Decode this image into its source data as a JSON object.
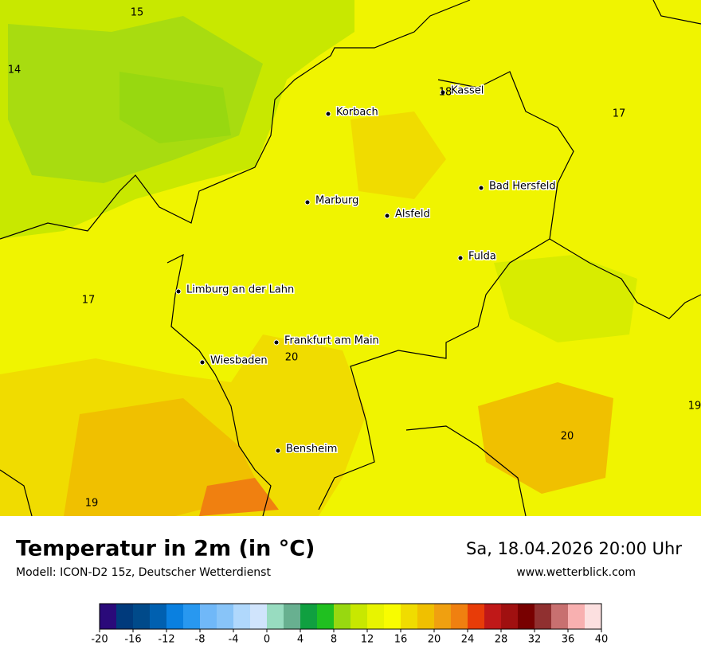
{
  "header": {
    "title": "Temperatur in 2m (in °C)",
    "subtitle": "Modell: ICON-D2 15z, Deutscher Wetterdienst",
    "datetime": "Sa, 18.04.2026 20:00 Uhr",
    "website": "www.wetterblick.com"
  },
  "map": {
    "cities": [
      "Kassel",
      "Korbach",
      "Marburg",
      "Alsfeld",
      "Bad Hersfeld",
      "Fulda",
      "Limburg an der Lahn",
      "Frankfurt am Main",
      "Wiesbaden",
      "Bensheim"
    ],
    "temperature_labels": [
      15,
      14,
      18,
      17,
      17,
      20,
      19,
      20,
      19
    ]
  },
  "legend": {
    "range": [
      -20,
      40
    ],
    "ticks": [
      -20,
      -16,
      -12,
      -8,
      -4,
      0,
      4,
      8,
      12,
      16,
      20,
      24,
      28,
      32,
      36,
      40
    ],
    "colors": [
      "#2a0a7a",
      "#003a7c",
      "#004a8a",
      "#0060b0",
      "#0a80e0",
      "#2898f0",
      "#70b8f8",
      "#88c4f8",
      "#b0d8fc",
      "#d0e4fc",
      "#98dcc0",
      "#68b090",
      "#10a040",
      "#20c020",
      "#98d810",
      "#c8e800",
      "#e8f400",
      "#f8fc00",
      "#f0dc00",
      "#f0c000",
      "#f0a010",
      "#f08010",
      "#e83c08",
      "#c01818",
      "#a01010",
      "#780000",
      "#903030",
      "#c87070",
      "#f8b0b0",
      "#fce0e0"
    ]
  }
}
